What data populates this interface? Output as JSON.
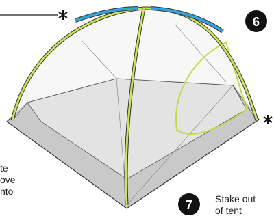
{
  "steps": [
    {
      "number": "6"
    },
    {
      "number": "7",
      "text": [
        "Stake out",
        "of tent"
      ]
    }
  ],
  "left_note": [
    "te",
    "ove",
    "nto"
  ]
}
